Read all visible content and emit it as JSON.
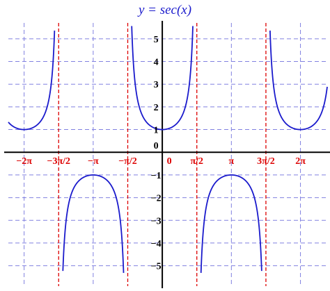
{
  "chart_data": {
    "type": "line",
    "title": "y = sec(x)",
    "function": "sec",
    "xlim": [
      -7.0,
      7.5
    ],
    "ylim": [
      -5.9,
      5.7
    ],
    "grid": true,
    "x_ticks": [
      {
        "value": -6.2832,
        "label": "−2π"
      },
      {
        "value": -4.7124,
        "label": "−3π/2"
      },
      {
        "value": -3.1416,
        "label": "−π"
      },
      {
        "value": -1.5708,
        "label": "−π/2"
      },
      {
        "value": 0,
        "label": "0"
      },
      {
        "value": 1.5708,
        "label": "π/2"
      },
      {
        "value": 3.1416,
        "label": "π"
      },
      {
        "value": 4.7124,
        "label": "3π/2"
      },
      {
        "value": 6.2832,
        "label": "2π"
      }
    ],
    "y_ticks": [
      {
        "value": 5,
        "label": "5"
      },
      {
        "value": 4,
        "label": "4"
      },
      {
        "value": 3,
        "label": "3"
      },
      {
        "value": 2,
        "label": "2"
      },
      {
        "value": 1,
        "label": "1"
      },
      {
        "value": 0,
        "label": "0"
      },
      {
        "value": -1,
        "label": "−1"
      },
      {
        "value": -2,
        "label": "−2"
      },
      {
        "value": -3,
        "label": "−3"
      },
      {
        "value": -4,
        "label": "−4"
      },
      {
        "value": -5,
        "label": "−5"
      }
    ],
    "asymptotes": [
      -4.7124,
      -1.5708,
      1.5708,
      4.7124
    ],
    "branches": [
      {
        "x_range": [
          -7.0,
          -4.9
        ],
        "sign": "positive"
      },
      {
        "x_range": [
          -4.52,
          -1.76
        ],
        "sign": "negative"
      },
      {
        "x_range": [
          -1.39,
          1.39
        ],
        "sign": "positive"
      },
      {
        "x_range": [
          1.76,
          4.52
        ],
        "sign": "negative"
      },
      {
        "x_range": [
          4.9,
          7.5
        ],
        "sign": "positive"
      }
    ],
    "colors": {
      "curve": "#1a1acc",
      "asymptote": "#dd0000",
      "grid": "#8080e0",
      "axis": "#000000",
      "title": "#1a1acc",
      "x_tick_labels": "#dd0000"
    }
  }
}
